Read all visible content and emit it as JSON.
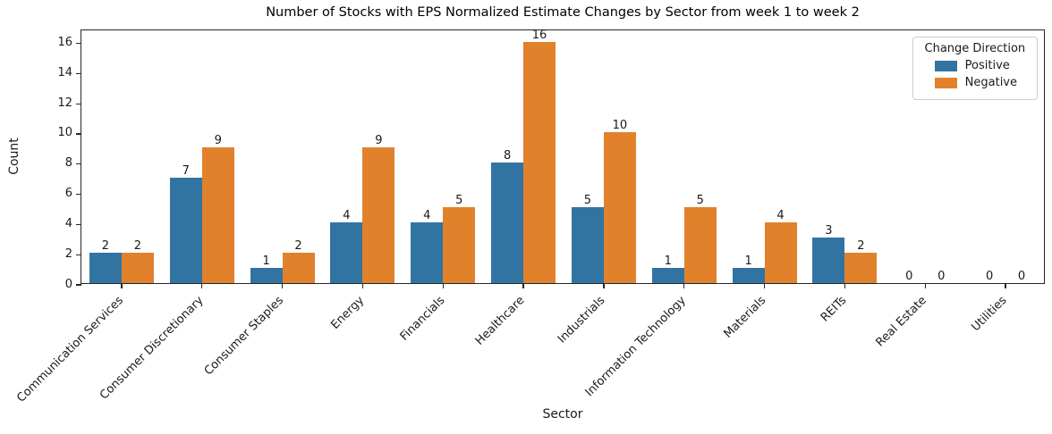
{
  "chart_data": {
    "type": "bar",
    "title": "Number of Stocks with EPS Normalized Estimate Changes by Sector from week 1 to week 2",
    "xlabel": "Sector",
    "ylabel": "Count",
    "categories": [
      "Communication Services",
      "Consumer Discretionary",
      "Consumer Staples",
      "Energy",
      "Financials",
      "Healthcare",
      "Industrials",
      "Information Technology",
      "Materials",
      "REITs",
      "Real Estate",
      "Utilities"
    ],
    "series": [
      {
        "name": "Positive",
        "color": "#3274a1",
        "values": [
          2,
          7,
          1,
          4,
          4,
          8,
          5,
          1,
          1,
          3,
          0,
          0
        ]
      },
      {
        "name": "Negative",
        "color": "#e1812c",
        "values": [
          2,
          9,
          2,
          9,
          5,
          16,
          10,
          5,
          4,
          2,
          0,
          0
        ]
      }
    ],
    "ylim": [
      0,
      16.86
    ],
    "yticks": [
      0,
      2,
      4,
      6,
      8,
      10,
      12,
      14,
      16
    ],
    "legend_title": "Change Direction",
    "legend_position": "upper right",
    "grid": false,
    "bar_labels": true
  }
}
